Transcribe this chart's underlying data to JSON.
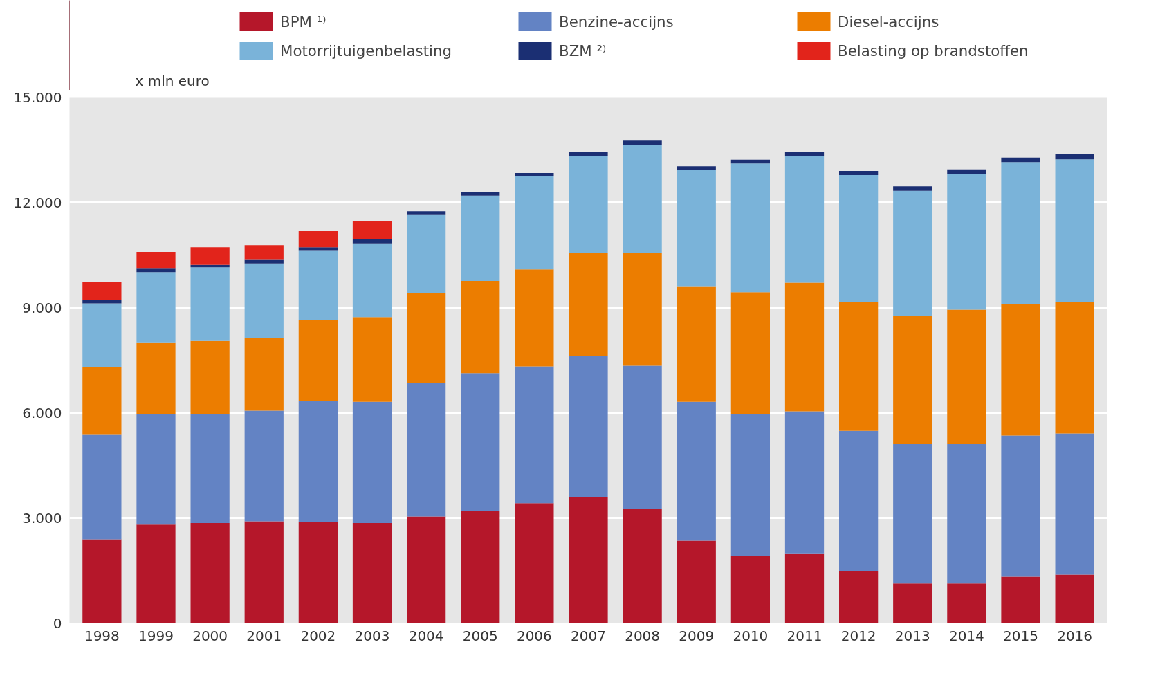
{
  "chart_data": {
    "type": "bar",
    "stacked": true,
    "ylabel": "x mln euro",
    "categories": [
      "1998",
      "1999",
      "2000",
      "2001",
      "2002",
      "2003",
      "2004",
      "2005",
      "2006",
      "2007",
      "2008",
      "2009",
      "2010",
      "2011",
      "2012",
      "2013",
      "2014",
      "2015",
      "2016"
    ],
    "series": [
      {
        "name": "BPM ¹⁾",
        "color": "#b5172a",
        "values": [
          2390,
          2810,
          2850,
          2900,
          2890,
          2850,
          3040,
          3190,
          3420,
          3590,
          3250,
          2350,
          1910,
          1990,
          1490,
          1130,
          1130,
          1320,
          1380
        ]
      },
      {
        "name": "Benzine-accijns",
        "color": "#6383c4",
        "values": [
          3000,
          3150,
          3110,
          3160,
          3440,
          3460,
          3820,
          3940,
          3900,
          4020,
          4090,
          3960,
          4050,
          4050,
          3990,
          3970,
          3970,
          4030,
          4030
        ]
      },
      {
        "name": "Diesel-accijns",
        "color": "#ec7d00",
        "values": [
          1910,
          2050,
          2090,
          2080,
          2310,
          2420,
          2560,
          2630,
          2770,
          2940,
          3210,
          3280,
          3480,
          3670,
          3670,
          3670,
          3840,
          3750,
          3740
        ]
      },
      {
        "name": "Motorrijtuigenbelasting",
        "color": "#7ab3d9",
        "values": [
          1820,
          2000,
          2100,
          2120,
          1980,
          2100,
          2220,
          2430,
          2660,
          2770,
          3090,
          3330,
          3670,
          3610,
          3630,
          3560,
          3860,
          4050,
          4080
        ]
      },
      {
        "name": "BZM ²⁾",
        "color": "#1b2f73",
        "values": [
          100,
          100,
          70,
          100,
          100,
          120,
          110,
          100,
          90,
          110,
          120,
          110,
          110,
          130,
          120,
          130,
          140,
          130,
          150
        ]
      },
      {
        "name": "Belasting op brandstoffen",
        "color": "#e2241b",
        "values": [
          500,
          480,
          500,
          420,
          460,
          520,
          null,
          null,
          null,
          null,
          null,
          null,
          null,
          null,
          null,
          null,
          null,
          null,
          null
        ]
      }
    ],
    "ylim": [
      0,
      15000
    ],
    "yticks": [
      {
        "value": 0,
        "label": "0"
      },
      {
        "value": 3000,
        "label": "3.000"
      },
      {
        "value": 6000,
        "label": "6.000"
      },
      {
        "value": 9000,
        "label": "9.000"
      },
      {
        "value": 12000,
        "label": "12.000"
      },
      {
        "value": 15000,
        "label": "15.000"
      }
    ],
    "grid": "y",
    "legend": "top"
  }
}
